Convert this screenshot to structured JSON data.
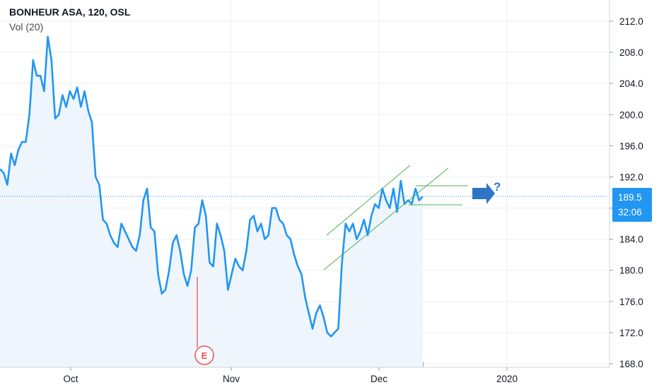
{
  "header": {
    "title": "BONHEUR ASA, 120, OSL",
    "volume_label": "Vol (20)"
  },
  "price_badge": {
    "value": "189.5",
    "countdown": "32:06"
  },
  "earnings_marker": {
    "label": "E"
  },
  "annotation": {
    "question": "?"
  },
  "colors": {
    "line": "#2196f3",
    "area_fill": "#eef5fd",
    "grid": "#eceff3",
    "badge": "#2196f3",
    "pattern": "#4caf50",
    "arrow": "#2e74c8",
    "vol_up": "#8fd3c0",
    "vol_down": "#f2a4a4",
    "earnings_line": "#ef8a8a"
  },
  "chart_data": {
    "type": "line",
    "title": "BONHEUR ASA, 120, OSL",
    "x_ticks": [
      "Oct",
      "Nov",
      "Dec",
      "2020"
    ],
    "y_ticks": [
      "212.0",
      "208.0",
      "204.0",
      "200.0",
      "196.0",
      "192.0",
      "188.0",
      "184.0",
      "180.0",
      "176.0",
      "172.0",
      "168.0"
    ],
    "ylim": [
      167.7,
      214.0
    ],
    "grid": true,
    "last_price": 189.5,
    "series": [
      {
        "values": [
          193.0,
          192.5,
          191.0,
          195.0,
          193.5,
          195.5,
          196.5,
          196.5,
          200.0,
          207.0,
          205.0,
          205.0,
          203.0,
          210.0,
          207.0,
          199.5,
          200.0,
          202.5,
          201.0,
          203.0,
          202.0,
          203.5,
          201.0,
          203.0,
          200.5,
          199.0,
          192.0,
          191.0,
          186.5,
          186.0,
          184.5,
          183.5,
          183.0,
          186.0,
          185.0,
          184.0,
          183.0,
          182.5,
          184.5,
          189.0,
          190.5,
          185.5,
          185.0,
          179.5,
          177.0,
          177.5,
          180.0,
          183.5,
          184.5,
          182.5,
          179.5,
          178.0,
          180.0,
          185.5,
          186.0,
          189.0,
          187.0,
          181.0,
          180.5,
          186.0,
          184.5,
          182.5,
          177.5,
          179.5,
          181.5,
          180.5,
          180.0,
          182.5,
          186.5,
          187.0,
          185.0,
          186.0,
          184.0,
          184.5,
          188.0,
          188.0,
          186.5,
          186.0,
          184.5,
          184.0,
          182.0,
          180.5,
          179.5,
          176.5,
          174.5,
          172.5,
          174.5,
          175.5,
          174.0,
          172.0,
          171.5,
          172.0,
          172.5,
          181.0,
          186.0,
          185.0,
          186.0,
          184.0,
          185.0,
          186.5,
          184.5,
          187.0,
          188.5,
          188.0,
          190.5,
          189.0,
          188.0,
          190.5,
          187.5,
          191.5,
          188.5,
          189.0,
          188.5,
          190.5,
          189.0,
          189.5
        ]
      }
    ],
    "volume_label": "Vol (20)"
  }
}
